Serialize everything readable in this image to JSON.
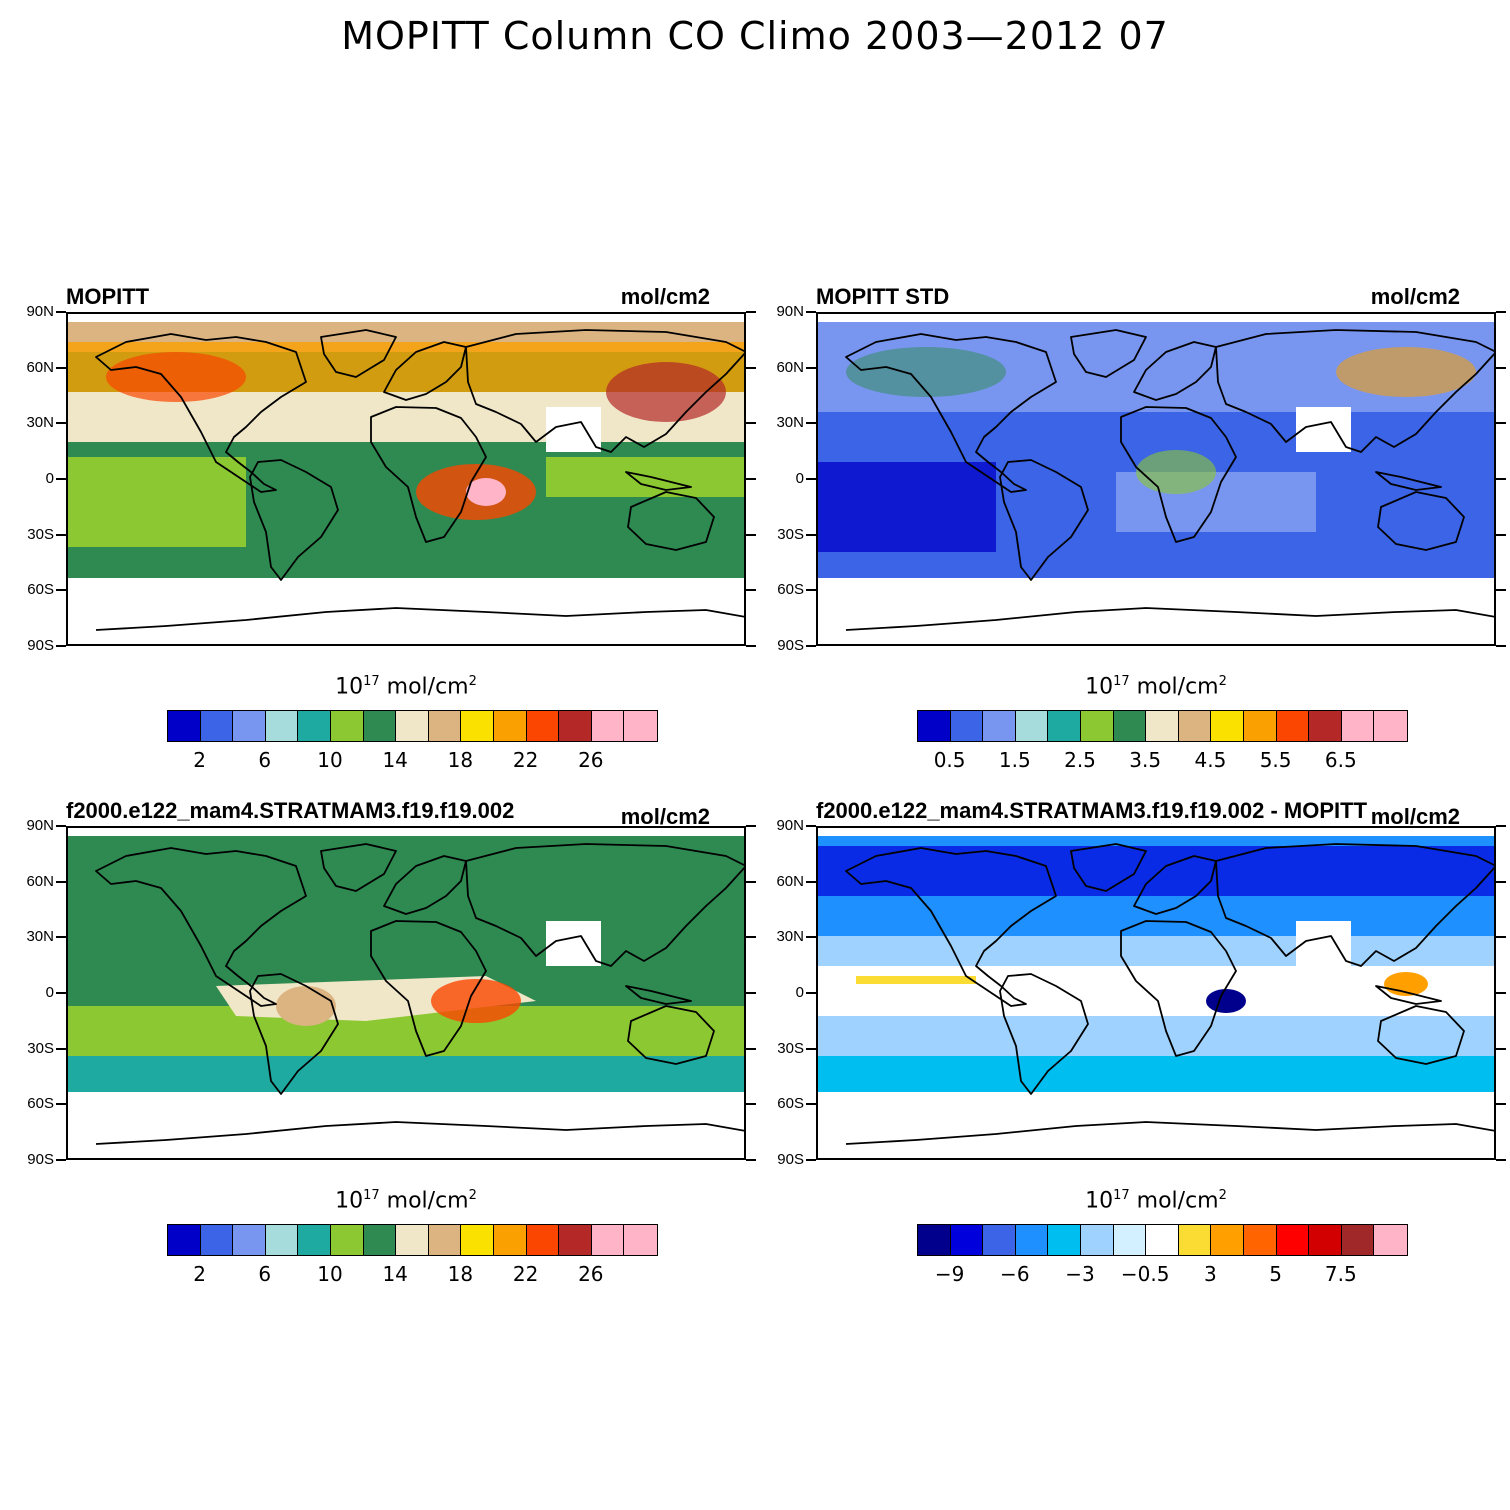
{
  "figure": {
    "title": "MOPITT Column CO Climo 2003—2012 07"
  },
  "lat_labels": [
    "90N",
    "60N",
    "30N",
    "0",
    "30S",
    "60S",
    "90S"
  ],
  "panels": [
    {
      "title": "MOPITT",
      "units": "mol/cm2",
      "colorbar": {
        "units_base": "10",
        "units_exp": "17",
        "units_text": "mol/cm",
        "units_sq": "2",
        "colors": [
          "#0000c8",
          "#3c64e6",
          "#7896f0",
          "#a6dcdc",
          "#1eaaa0",
          "#8cc832",
          "#2e8a50",
          "#f0e6c8",
          "#dcb482",
          "#fae100",
          "#faa000",
          "#fa4600",
          "#b42828",
          "#ffb4c8",
          "#ffb4c8"
        ],
        "labels": [
          "2",
          "6",
          "10",
          "14",
          "18",
          "22",
          "26"
        ]
      }
    },
    {
      "title": "MOPITT STD",
      "units": "mol/cm2",
      "colorbar": {
        "units_base": "10",
        "units_exp": "17",
        "units_text": "mol/cm",
        "units_sq": "2",
        "colors": [
          "#0000c8",
          "#3c64e6",
          "#7896f0",
          "#a6dcdc",
          "#1eaaa0",
          "#8cc832",
          "#2e8a50",
          "#f0e6c8",
          "#dcb482",
          "#fae100",
          "#faa000",
          "#fa4600",
          "#b42828",
          "#ffb4c8",
          "#ffb4c8"
        ],
        "labels": [
          "0.5",
          "1.5",
          "2.5",
          "3.5",
          "4.5",
          "5.5",
          "6.5"
        ]
      }
    },
    {
      "title": "f2000.e122_mam4.STRATMAM3.f19.f19.002",
      "units": "mol/cm2",
      "colorbar": {
        "units_base": "10",
        "units_exp": "17",
        "units_text": "mol/cm",
        "units_sq": "2",
        "colors": [
          "#0000c8",
          "#3c64e6",
          "#7896f0",
          "#a6dcdc",
          "#1eaaa0",
          "#8cc832",
          "#2e8a50",
          "#f0e6c8",
          "#dcb482",
          "#fae100",
          "#faa000",
          "#fa4600",
          "#b42828",
          "#ffb4c8",
          "#ffb4c8"
        ],
        "labels": [
          "2",
          "6",
          "10",
          "14",
          "18",
          "22",
          "26"
        ]
      }
    },
    {
      "title": "f2000.e122_mam4.STRATMAM3.f19.f19.002 - MOPITT",
      "units": "mol/cm2",
      "colorbar": {
        "units_base": "10",
        "units_exp": "17",
        "units_text": "mol/cm",
        "units_sq": "2",
        "colors": [
          "#00008c",
          "#0000dc",
          "#3c64e6",
          "#1e90ff",
          "#00bef0",
          "#a0d2ff",
          "#d2f0ff",
          "#ffffff",
          "#fadc32",
          "#ffa000",
          "#ff6400",
          "#ff0000",
          "#d20000",
          "#a02828",
          "#ffb4c8"
        ],
        "labels": [
          "−9",
          "−6",
          "−3",
          "−0.5",
          "3",
          "5",
          "7.5"
        ]
      }
    }
  ]
}
